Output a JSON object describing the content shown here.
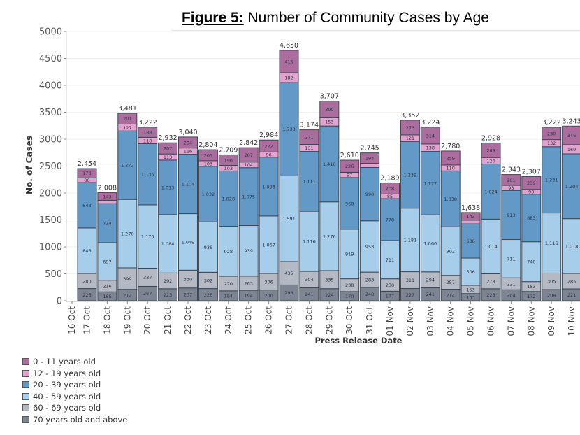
{
  "chart_data": {
    "type": "bar",
    "stacked": true,
    "title_prefix": "Figure 5:",
    "title": "Number of Community Cases by Age",
    "xlabel": "Press Release Date",
    "ylabel": "No. of Cases",
    "ylim": [
      0,
      5000
    ],
    "yticks": [
      0,
      500,
      1000,
      1500,
      2000,
      2500,
      3000,
      3500,
      4000,
      4500,
      5000
    ],
    "grid": true,
    "legend_position": "bottom-left",
    "x_tick_labels": [
      "16 Oct",
      "17 Oct",
      "18 Oct",
      "19 Oct",
      "20 Oct",
      "21 Oct",
      "22 Oct",
      "23 Oct",
      "24 Oct",
      "25 Oct",
      "26 Oct",
      "27 Oct",
      "28 Oct",
      "29 Oct",
      "30 Oct",
      "31 Oct",
      "01 Nov",
      "02 Nov",
      "03 Nov",
      "04 Nov",
      "05 Nov",
      "06 Nov",
      "07 Nov",
      "08 Nov",
      "09 Nov",
      "10 Nov"
    ],
    "categories": [
      "17 Oct",
      "18 Oct",
      "19 Oct",
      "20 Oct",
      "21 Oct",
      "22 Oct",
      "23 Oct",
      "24 Oct",
      "25 Oct",
      "26 Oct",
      "27 Oct",
      "28 Oct",
      "29 Oct",
      "30 Oct",
      "31 Oct",
      "01 Nov",
      "02 Nov",
      "03 Nov",
      "04 Nov",
      "05 Nov",
      "06 Nov",
      "07 Nov",
      "08 Nov",
      "09 Nov",
      "10 Nov"
    ],
    "series": [
      {
        "name": "70 years old and above",
        "color": "#7d8592",
        "values": [
          226,
          165,
          212,
          267,
          223,
          237,
          226,
          184,
          194,
          200,
          293,
          241,
          224,
          170,
          248,
          177,
          227,
          241,
          214,
          133,
          223,
          204,
          172,
          208,
          221
        ]
      },
      {
        "name": "60 - 69 years old",
        "color": "#b4b9c4",
        "values": [
          280,
          216,
          399,
          337,
          292,
          330,
          302,
          270,
          263,
          306,
          435,
          304,
          335,
          238,
          283,
          230,
          311,
          294,
          257,
          153,
          278,
          221,
          183,
          305,
          285
        ]
      },
      {
        "name": "40 - 59 years old",
        "color": "#a6cde9",
        "values": [
          846,
          697,
          1270,
          1176,
          1084,
          1049,
          936,
          928,
          939,
          1067,
          1591,
          1116,
          1276,
          919,
          953,
          711,
          1181,
          1060,
          902,
          506,
          1014,
          711,
          740,
          1116,
          1018
        ]
      },
      {
        "name": "20 - 39 years old",
        "color": "#6399c6",
        "values": [
          843,
          724,
          1272,
          1136,
          1013,
          1104,
          1032,
          1028,
          1075,
          1093,
          1733,
          1111,
          1410,
          960,
          990,
          778,
          1239,
          1177,
          1038,
          636,
          1024,
          913,
          883,
          1231,
          1204
        ]
      },
      {
        "name": "12 - 19 years old",
        "color": "#e3a3cf",
        "values": [
          86,
          63,
          127,
          118,
          113,
          116,
          103,
          103,
          104,
          96,
          182,
          131,
          153,
          97,
          77,
          85,
          121,
          138,
          110,
          67,
          120,
          93,
          90,
          132,
          169
        ]
      },
      {
        "name": "0 - 11 years old",
        "color": "#aa6d9e",
        "values": [
          173,
          143,
          201,
          188,
          207,
          204,
          205,
          196,
          267,
          222,
          416,
          271,
          309,
          226,
          194,
          208,
          273,
          314,
          259,
          143,
          269,
          201,
          239,
          230,
          346
        ]
      }
    ],
    "totals": [
      "2,454",
      "2,008",
      "3,481",
      "3,222",
      "2,932",
      "3,040",
      "2,804",
      "2,709",
      "2,842",
      "2,984",
      "4,650",
      "3,174",
      "3,707",
      "2,610",
      "2,745",
      "2,189",
      "3,352",
      "3,224",
      "2,780",
      "1,638",
      "2,928",
      "2,343",
      "2,307",
      "3,222",
      "3,243"
    ]
  },
  "legend": [
    {
      "label": "0 - 11 years old",
      "color": "#aa6d9e"
    },
    {
      "label": "12 - 19 years old",
      "color": "#e3a3cf"
    },
    {
      "label": "20 - 39 years old",
      "color": "#6399c6"
    },
    {
      "label": "40 - 59 years old",
      "color": "#a6cde9"
    },
    {
      "label": "60 - 69 years old",
      "color": "#b4b9c4"
    },
    {
      "label": "70 years old and above",
      "color": "#7d8592"
    }
  ]
}
